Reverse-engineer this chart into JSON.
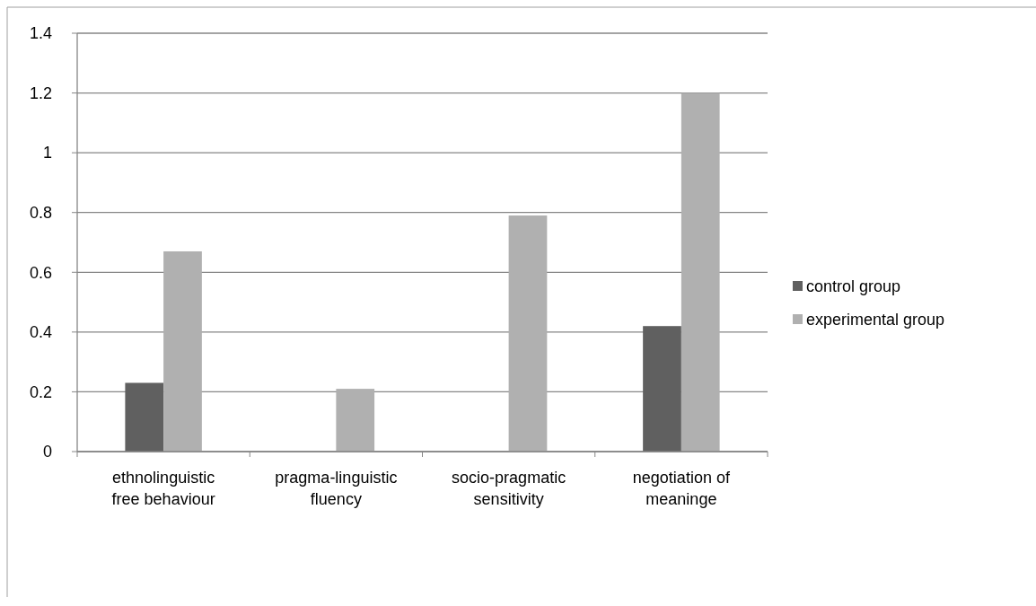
{
  "chart_data": {
    "type": "bar",
    "categories": [
      "ethnolinguistic free behaviour",
      "pragma-linguistic fluency",
      "socio-pragmatic sensitivity",
      "negotiation of meaninge"
    ],
    "series": [
      {
        "name": "control group",
        "color": "#606060",
        "values": [
          0.23,
          0,
          0,
          0.42
        ]
      },
      {
        "name": "experimental group",
        "color": "#b0b0b0",
        "values": [
          0.67,
          0.21,
          0.79,
          1.2
        ]
      }
    ],
    "ylim": [
      0,
      1.4
    ],
    "yticks": [
      0,
      0.2,
      0.4,
      0.6,
      0.8,
      1,
      1.2,
      1.4
    ],
    "grid": "y",
    "legend": "right"
  }
}
